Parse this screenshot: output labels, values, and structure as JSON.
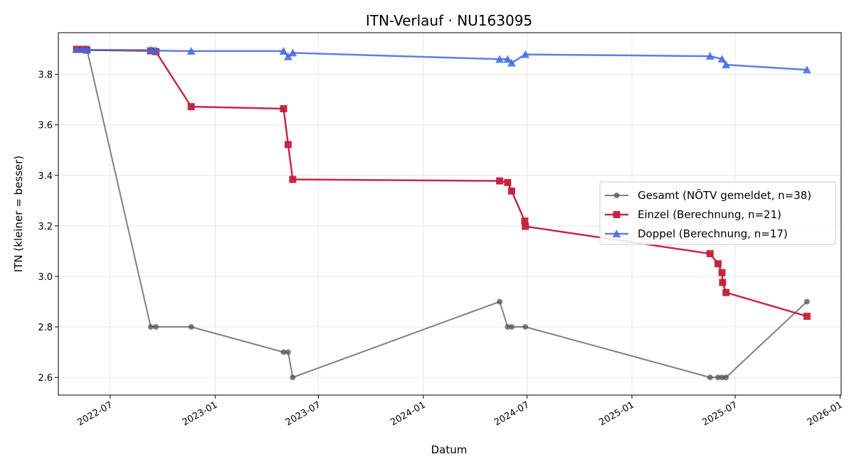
{
  "chart_data": {
    "type": "line",
    "title": "ITN-Verlauf · NU163095",
    "xlabel": "Datum",
    "ylabel": "ITN  (kleiner = besser)",
    "x_type": "date",
    "xlim": [
      "2022-04-01",
      "2026-01-03"
    ],
    "ylim": [
      2.53,
      3.965
    ],
    "x_ticks": [
      {
        "date": "2022-07-01",
        "label": "2022-07"
      },
      {
        "date": "2023-01-01",
        "label": "2023-01"
      },
      {
        "date": "2023-07-01",
        "label": "2023-07"
      },
      {
        "date": "2024-01-01",
        "label": "2024-01"
      },
      {
        "date": "2024-07-01",
        "label": "2024-07"
      },
      {
        "date": "2025-01-01",
        "label": "2025-01"
      },
      {
        "date": "2025-07-01",
        "label": "2025-07"
      },
      {
        "date": "2026-01-01",
        "label": "2026-01"
      }
    ],
    "y_ticks": [
      2.6,
      2.8,
      3.0,
      3.2,
      3.4,
      3.6,
      3.8
    ],
    "y_tick_labels": [
      "2.6",
      "2.8",
      "3.0",
      "3.2",
      "3.4",
      "3.6",
      "3.8"
    ],
    "grid": true,
    "legend_position": "center-right",
    "series": [
      {
        "name": "Gesamt (NÖTV gemeldet, n=38)",
        "color": "#555555",
        "marker": "circle",
        "points": [
          {
            "x": "2022-05-03",
            "y": 3.9
          },
          {
            "x": "2022-05-14",
            "y": 3.9
          },
          {
            "x": "2022-05-19",
            "y": 3.9
          },
          {
            "x": "2022-05-21",
            "y": 3.9
          },
          {
            "x": "2022-09-10",
            "y": 2.8
          },
          {
            "x": "2022-09-19",
            "y": 2.8
          },
          {
            "x": "2022-11-20",
            "y": 2.8
          },
          {
            "x": "2023-05-01",
            "y": 2.7
          },
          {
            "x": "2023-05-09",
            "y": 2.7
          },
          {
            "x": "2023-05-17",
            "y": 2.6
          },
          {
            "x": "2024-05-14",
            "y": 2.9
          },
          {
            "x": "2024-05-28",
            "y": 2.8
          },
          {
            "x": "2024-06-04",
            "y": 2.8
          },
          {
            "x": "2024-06-28",
            "y": 2.8
          },
          {
            "x": "2025-05-18",
            "y": 2.6
          },
          {
            "x": "2025-06-01",
            "y": 2.6
          },
          {
            "x": "2025-06-08",
            "y": 2.6
          },
          {
            "x": "2025-06-15",
            "y": 2.6
          },
          {
            "x": "2025-11-04",
            "y": 2.9
          }
        ]
      },
      {
        "name": "Einzel (Berechnung, n=21)",
        "color": "#c41e3a",
        "marker": "square",
        "points": [
          {
            "x": "2022-05-03",
            "y": 3.899
          },
          {
            "x": "2022-05-14",
            "y": 3.899
          },
          {
            "x": "2022-05-19",
            "y": 3.899
          },
          {
            "x": "2022-05-21",
            "y": 3.896
          },
          {
            "x": "2022-09-10",
            "y": 3.893
          },
          {
            "x": "2022-09-19",
            "y": 3.89
          },
          {
            "x": "2022-11-20",
            "y": 3.672
          },
          {
            "x": "2023-05-01",
            "y": 3.664
          },
          {
            "x": "2023-05-09",
            "y": 3.522
          },
          {
            "x": "2023-05-17",
            "y": 3.384
          },
          {
            "x": "2024-05-14",
            "y": 3.378
          },
          {
            "x": "2024-05-28",
            "y": 3.372
          },
          {
            "x": "2024-06-04",
            "y": 3.338
          },
          {
            "x": "2024-06-27",
            "y": 3.219
          },
          {
            "x": "2024-06-28",
            "y": 3.198
          },
          {
            "x": "2025-05-18",
            "y": 3.09
          },
          {
            "x": "2025-06-01",
            "y": 3.05
          },
          {
            "x": "2025-06-08",
            "y": 3.015
          },
          {
            "x": "2025-06-09",
            "y": 2.976
          },
          {
            "x": "2025-06-15",
            "y": 2.936
          },
          {
            "x": "2025-11-04",
            "y": 2.842
          }
        ]
      },
      {
        "name": "Doppel (Berechnung, n=17)",
        "color": "#4169e1",
        "marker": "triangle",
        "points": [
          {
            "x": "2022-05-03",
            "y": 3.9
          },
          {
            "x": "2022-05-14",
            "y": 3.899
          },
          {
            "x": "2022-05-21",
            "y": 3.897
          },
          {
            "x": "2022-09-10",
            "y": 3.896
          },
          {
            "x": "2022-09-19",
            "y": 3.894
          },
          {
            "x": "2022-11-20",
            "y": 3.892
          },
          {
            "x": "2023-05-01",
            "y": 3.892
          },
          {
            "x": "2023-05-09",
            "y": 3.87
          },
          {
            "x": "2023-05-17",
            "y": 3.885
          },
          {
            "x": "2024-05-14",
            "y": 3.86
          },
          {
            "x": "2024-05-28",
            "y": 3.86
          },
          {
            "x": "2024-06-04",
            "y": 3.845
          },
          {
            "x": "2024-06-28",
            "y": 3.879
          },
          {
            "x": "2025-05-18",
            "y": 3.872
          },
          {
            "x": "2025-06-08",
            "y": 3.861
          },
          {
            "x": "2025-06-15",
            "y": 3.838
          },
          {
            "x": "2025-11-04",
            "y": 3.818
          }
        ]
      }
    ]
  }
}
